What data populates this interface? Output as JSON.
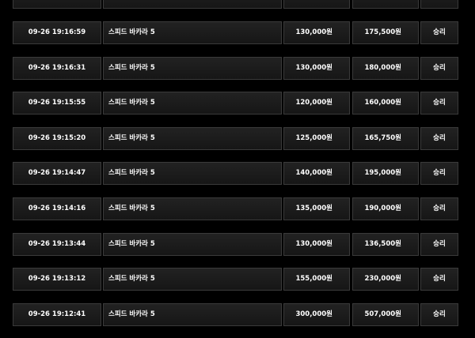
{
  "rows": [
    [
      "09-26 19:16:59",
      "스피드 바카라 5",
      "130,000원",
      "175,500원",
      "승리"
    ],
    [
      "09-26 19:16:31",
      "스피드 바카라 5",
      "130,000원",
      "180,000원",
      "승리"
    ],
    [
      "09-26 19:15:55",
      "스피드 바카라 5",
      "120,000원",
      "160,000원",
      "승리"
    ],
    [
      "09-26 19:15:20",
      "스피드 바카라 5",
      "125,000원",
      "165,750원",
      "승리"
    ],
    [
      "09-26 19:14:47",
      "스피드 바카라 5",
      "140,000원",
      "195,000원",
      "승리"
    ],
    [
      "09-26 19:14:16",
      "스피드 바카라 5",
      "135,000원",
      "190,000원",
      "승리"
    ],
    [
      "09-26 19:13:44",
      "스피드 바카라 5",
      "130,000원",
      "136,500원",
      "승리"
    ],
    [
      "09-26 19:13:12",
      "스피드 바카라 5",
      "155,000원",
      "230,000원",
      "승리"
    ],
    [
      "09-26 19:12:41",
      "스피드 바카라 5",
      "300,000원",
      "507,000원",
      "승리"
    ]
  ]
}
